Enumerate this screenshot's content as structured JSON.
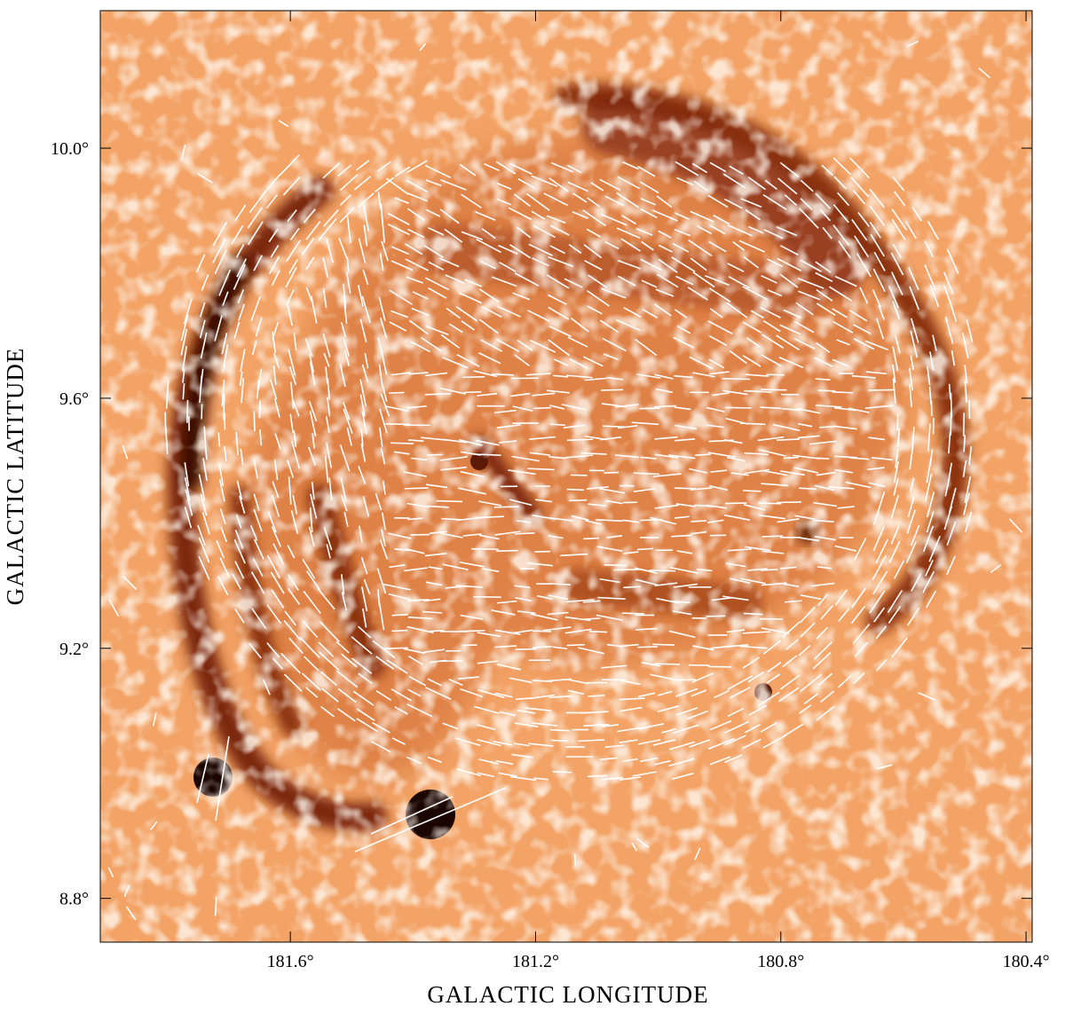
{
  "chart_data": {
    "type": "image",
    "xlabel": "GALACTIC LONGITUDE",
    "ylabel": "GALACTIC LATITUDE",
    "xlim": [
      181.91,
      180.39
    ],
    "ylim": [
      8.73,
      10.22
    ],
    "xticks": [
      {
        "value": 181.6,
        "label": "181.6°"
      },
      {
        "value": 181.2,
        "label": "181.2°"
      },
      {
        "value": 180.8,
        "label": "180.8°"
      },
      {
        "value": 180.4,
        "label": "180.4°"
      }
    ],
    "yticks": [
      {
        "value": 10.0,
        "label": "10.0°"
      },
      {
        "value": 9.6,
        "label": "9.6°"
      },
      {
        "value": 9.2,
        "label": "9.2°"
      },
      {
        "value": 8.8,
        "label": "8.8°"
      }
    ]
  }
}
